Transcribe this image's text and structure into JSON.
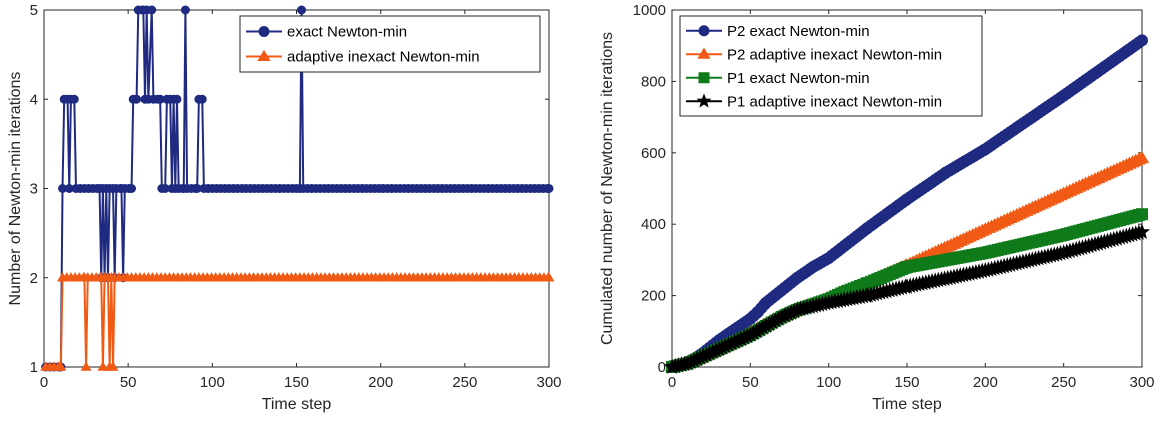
{
  "chart_data": [
    {
      "type": "line",
      "xlabel": "Time step",
      "ylabel": "Number of Newton-min iterations",
      "xlim": [
        0,
        300
      ],
      "ylim": [
        1,
        5
      ],
      "xticks": [
        0,
        50,
        100,
        150,
        200,
        250,
        300
      ],
      "yticks": [
        1,
        2,
        3,
        4,
        5
      ],
      "grid": false,
      "legend_position": "top-right",
      "series": [
        {
          "name": "exact Newton-min",
          "color": "#1f2a80",
          "marker": "circle",
          "points": [
            [
              1,
              1
            ],
            [
              10,
              1
            ],
            [
              11,
              3
            ],
            [
              12,
              4
            ],
            [
              14,
              4
            ],
            [
              15,
              3
            ],
            [
              16,
              4
            ],
            [
              18,
              4
            ],
            [
              19,
              3
            ],
            [
              33,
              3
            ],
            [
              34,
              2
            ],
            [
              35,
              3
            ],
            [
              36,
              2
            ],
            [
              37,
              3
            ],
            [
              38,
              2
            ],
            [
              39,
              3
            ],
            [
              41,
              3
            ],
            [
              42,
              2
            ],
            [
              43,
              3
            ],
            [
              46,
              3
            ],
            [
              47,
              2
            ],
            [
              48,
              3
            ],
            [
              52,
              3
            ],
            [
              53,
              4
            ],
            [
              55,
              4
            ],
            [
              56,
              5
            ],
            [
              59,
              5
            ],
            [
              60,
              4
            ],
            [
              61,
              5
            ],
            [
              62,
              4
            ],
            [
              64,
              5
            ],
            [
              65,
              4
            ],
            [
              69,
              4
            ],
            [
              70,
              3
            ],
            [
              72,
              3
            ],
            [
              73,
              4
            ],
            [
              75,
              4
            ],
            [
              76,
              3
            ],
            [
              77,
              4
            ],
            [
              78,
              3
            ],
            [
              79,
              4
            ],
            [
              80,
              3
            ],
            [
              83,
              3
            ],
            [
              84,
              5
            ],
            [
              85,
              3
            ],
            [
              91,
              3
            ],
            [
              92,
              4
            ],
            [
              94,
              4
            ],
            [
              95,
              3
            ],
            [
              152,
              3
            ],
            [
              153,
              5
            ],
            [
              154,
              3
            ],
            [
              300,
              3
            ]
          ]
        },
        {
          "name": "adaptive inexact Newton-min",
          "color": "#f05a14",
          "marker": "triangle",
          "points": [
            [
              1,
              1
            ],
            [
              10,
              1
            ],
            [
              11,
              2
            ],
            [
              24,
              2
            ],
            [
              25,
              1
            ],
            [
              26,
              2
            ],
            [
              34,
              2
            ],
            [
              35,
              1
            ],
            [
              36,
              2
            ],
            [
              38,
              2
            ],
            [
              39,
              1
            ],
            [
              40,
              2
            ],
            [
              41,
              1
            ],
            [
              42,
              2
            ],
            [
              300,
              2
            ]
          ]
        }
      ]
    },
    {
      "type": "line",
      "xlabel": "Time step",
      "ylabel": "Cumulated number of Newton-min iterations",
      "xlim": [
        0,
        300
      ],
      "ylim": [
        0,
        1000
      ],
      "xticks": [
        0,
        50,
        100,
        150,
        200,
        250,
        300
      ],
      "yticks": [
        0,
        200,
        400,
        600,
        800,
        1000
      ],
      "grid": false,
      "legend_position": "top-left",
      "series": [
        {
          "name": "P2 exact Newton-min",
          "color": "#1f2a80",
          "marker": "circle",
          "points": [
            [
              0,
              0
            ],
            [
              10,
              10
            ],
            [
              20,
              40
            ],
            [
              30,
              75
            ],
            [
              40,
              105
            ],
            [
              50,
              135
            ],
            [
              55,
              155
            ],
            [
              60,
              180
            ],
            [
              70,
              215
            ],
            [
              80,
              250
            ],
            [
              90,
              280
            ],
            [
              100,
              305
            ],
            [
              125,
              390
            ],
            [
              150,
              470
            ],
            [
              175,
              545
            ],
            [
              200,
              610
            ],
            [
              250,
              760
            ],
            [
              300,
              915
            ]
          ]
        },
        {
          "name": "P2 adaptive inexact Newton-min",
          "color": "#f05a14",
          "marker": "triangle",
          "points": [
            [
              0,
              0
            ],
            [
              10,
              10
            ],
            [
              20,
              30
            ],
            [
              40,
              70
            ],
            [
              50,
              95
            ],
            [
              60,
              120
            ],
            [
              70,
              140
            ],
            [
              80,
              160
            ],
            [
              100,
              190
            ],
            [
              125,
              235
            ],
            [
              150,
              285
            ],
            [
              200,
              385
            ],
            [
              250,
              485
            ],
            [
              300,
              585
            ]
          ]
        },
        {
          "name": "P1 exact Newton-min",
          "color": "#0f7a1a",
          "marker": "square",
          "points": [
            [
              0,
              0
            ],
            [
              10,
              10
            ],
            [
              20,
              30
            ],
            [
              40,
              70
            ],
            [
              50,
              90
            ],
            [
              60,
              115
            ],
            [
              70,
              140
            ],
            [
              80,
              160
            ],
            [
              100,
              190
            ],
            [
              110,
              210
            ],
            [
              125,
              235
            ],
            [
              150,
              280
            ],
            [
              200,
              320
            ],
            [
              250,
              370
            ],
            [
              300,
              428
            ]
          ]
        },
        {
          "name": "P1 adaptive inexact Newton-min",
          "color": "#000000",
          "marker": "star",
          "points": [
            [
              0,
              0
            ],
            [
              10,
              10
            ],
            [
              20,
              30
            ],
            [
              40,
              70
            ],
            [
              50,
              90
            ],
            [
              60,
              115
            ],
            [
              70,
              140
            ],
            [
              80,
              160
            ],
            [
              100,
              180
            ],
            [
              125,
              200
            ],
            [
              150,
              225
            ],
            [
              200,
              270
            ],
            [
              250,
              320
            ],
            [
              300,
              378
            ]
          ]
        }
      ]
    }
  ]
}
